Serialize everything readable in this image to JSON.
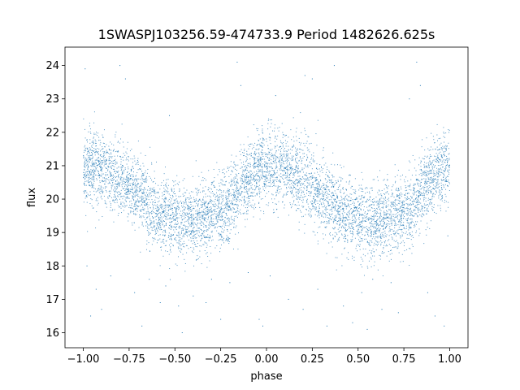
{
  "chart_data": {
    "type": "scatter",
    "title": "1SWASPJ103256.59-474733.9 Period 1482626.625s",
    "xlabel": "phase",
    "ylabel": "flux",
    "xlim": [
      -1.1,
      1.1
    ],
    "ylim": [
      15.55,
      24.55
    ],
    "xticks": [
      -1.0,
      -0.75,
      -0.5,
      -0.25,
      0.0,
      0.25,
      0.5,
      0.75,
      1.0
    ],
    "xtick_labels": [
      "−1.00",
      "−0.75",
      "−0.50",
      "−0.25",
      "0.00",
      "0.25",
      "0.50",
      "0.75",
      "1.00"
    ],
    "yticks": [
      16,
      17,
      18,
      19,
      20,
      21,
      22,
      23,
      24
    ],
    "ytick_labels": [
      "16",
      "17",
      "18",
      "19",
      "20",
      "21",
      "22",
      "23",
      "24"
    ],
    "grid": false,
    "legend": "none",
    "point_color": "#1f77b4",
    "series": [
      {
        "x": [
          -1.0,
          -0.95,
          -0.9,
          -0.85,
          -0.8,
          -0.75,
          -0.7,
          -0.65,
          -0.6,
          -0.55,
          -0.5,
          -0.45,
          -0.4,
          -0.35,
          -0.3,
          -0.25,
          -0.2,
          -0.15,
          -0.1,
          -0.05,
          0.0,
          0.05,
          0.1,
          0.15,
          0.2,
          0.25,
          0.3,
          0.35,
          0.4,
          0.45,
          0.5,
          0.55,
          0.6,
          0.65,
          0.7,
          0.75,
          0.8,
          0.85,
          0.9,
          0.95,
          1.0
        ],
        "y": [
          20.9,
          21.0,
          20.9,
          20.7,
          20.6,
          20.4,
          20.2,
          19.9,
          19.6,
          19.5,
          19.4,
          19.3,
          19.3,
          19.4,
          19.5,
          19.6,
          19.8,
          20.2,
          20.6,
          20.9,
          21.0,
          21.0,
          20.9,
          20.7,
          20.6,
          20.4,
          20.2,
          19.9,
          19.6,
          19.5,
          19.4,
          19.3,
          19.3,
          19.4,
          19.5,
          19.6,
          19.8,
          20.2,
          20.6,
          20.9,
          20.9
        ],
        "spread": 0.55,
        "points_per_unit_phase": 3200
      }
    ],
    "outliers": [
      [
        -0.99,
        23.9
      ],
      [
        -0.98,
        18.0
      ],
      [
        -0.96,
        16.5
      ],
      [
        -0.93,
        17.3
      ],
      [
        -0.9,
        16.7
      ],
      [
        -0.85,
        17.7
      ],
      [
        -0.8,
        24.0
      ],
      [
        -0.77,
        23.6
      ],
      [
        -0.72,
        17.2
      ],
      [
        -0.68,
        16.2
      ],
      [
        -0.64,
        17.6
      ],
      [
        -0.58,
        16.9
      ],
      [
        -0.55,
        17.4
      ],
      [
        -0.53,
        22.5
      ],
      [
        -0.48,
        16.8
      ],
      [
        -0.46,
        16.0
      ],
      [
        -0.4,
        17.1
      ],
      [
        -0.33,
        16.9
      ],
      [
        -0.3,
        17.6
      ],
      [
        -0.25,
        16.4
      ],
      [
        -0.2,
        17.5
      ],
      [
        -0.16,
        24.1
      ],
      [
        -0.14,
        23.4
      ],
      [
        -0.1,
        17.8
      ],
      [
        -0.04,
        16.4
      ],
      [
        -0.02,
        16.2
      ],
      [
        0.02,
        17.7
      ],
      [
        0.05,
        23.1
      ],
      [
        0.12,
        17.0
      ],
      [
        0.2,
        16.7
      ],
      [
        0.21,
        23.7
      ],
      [
        0.25,
        23.6
      ],
      [
        0.28,
        17.3
      ],
      [
        0.33,
        16.2
      ],
      [
        0.37,
        24.0
      ],
      [
        0.42,
        16.8
      ],
      [
        0.47,
        16.3
      ],
      [
        0.52,
        17.2
      ],
      [
        0.55,
        16.1
      ],
      [
        0.58,
        17.6
      ],
      [
        0.63,
        16.7
      ],
      [
        0.68,
        17.5
      ],
      [
        0.72,
        16.6
      ],
      [
        0.78,
        23.0
      ],
      [
        0.82,
        24.1
      ],
      [
        0.84,
        23.4
      ],
      [
        0.88,
        17.2
      ],
      [
        0.92,
        16.5
      ],
      [
        0.97,
        16.2
      ],
      [
        0.99,
        18.9
      ]
    ]
  }
}
